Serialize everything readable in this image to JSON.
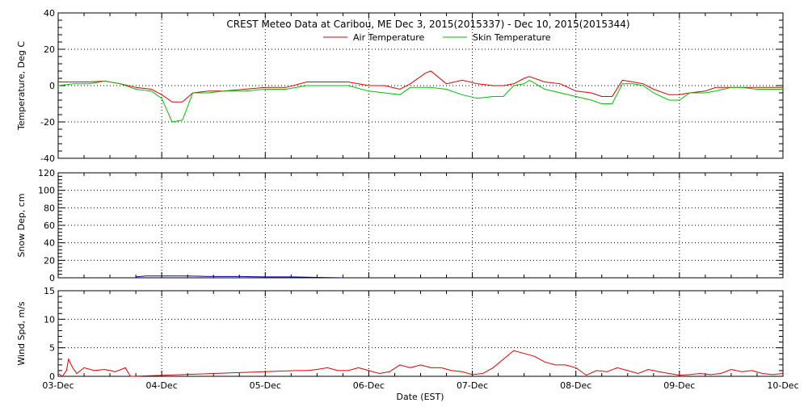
{
  "chart_data": [
    {
      "type": "line",
      "title": "CREST Meteo Data at Caribou, ME   Dec  3, 2015(2015337) - Dec 10, 2015(2015344)",
      "ylabel": "Temperature, Deg C",
      "ylim": [
        -40,
        40
      ],
      "yticks": [
        -40,
        -20,
        0,
        20,
        40
      ],
      "xlim": [
        0,
        7
      ],
      "grid": true,
      "legend": "top-center",
      "series": [
        {
          "name": "Air Temperature",
          "color": "#e00000",
          "x": [
            0,
            0.15,
            0.3,
            0.45,
            0.6,
            0.75,
            0.9,
            1.0,
            1.1,
            1.2,
            1.3,
            1.45,
            1.6,
            1.8,
            2.0,
            2.2,
            2.4,
            2.6,
            2.8,
            3.0,
            3.15,
            3.3,
            3.4,
            3.55,
            3.6,
            3.75,
            3.9,
            4.05,
            4.2,
            4.3,
            4.4,
            4.5,
            4.55,
            4.7,
            4.85,
            5.0,
            5.15,
            5.25,
            5.35,
            5.45,
            5.55,
            5.65,
            5.75,
            5.9,
            6.0,
            6.1,
            6.25,
            6.35,
            6.5,
            6.6,
            6.75,
            6.9,
            7.0
          ],
          "y": [
            2,
            2,
            2,
            2.5,
            1,
            -1,
            -2,
            -5,
            -9,
            -9,
            -4,
            -3,
            -3,
            -2,
            -1,
            -1,
            2,
            2,
            2,
            0,
            0,
            -2,
            1,
            7,
            8,
            1,
            3,
            1,
            0,
            0,
            1,
            4,
            5,
            2,
            1,
            -3,
            -4,
            -6,
            -6,
            3,
            2,
            1,
            -2,
            -5,
            -5,
            -4,
            -3,
            -1,
            -1,
            -1,
            -1,
            -1,
            -1
          ]
        },
        {
          "name": "Skin Temperature",
          "color": "#00c000",
          "x": [
            0,
            0.15,
            0.3,
            0.45,
            0.6,
            0.75,
            0.9,
            1.0,
            1.1,
            1.2,
            1.3,
            1.45,
            1.6,
            1.8,
            2.0,
            2.2,
            2.4,
            2.6,
            2.8,
            3.0,
            3.15,
            3.3,
            3.4,
            3.55,
            3.6,
            3.75,
            3.9,
            4.05,
            4.2,
            4.3,
            4.4,
            4.5,
            4.55,
            4.7,
            4.85,
            5.0,
            5.15,
            5.25,
            5.35,
            5.45,
            5.55,
            5.65,
            5.75,
            5.9,
            6.0,
            6.1,
            6.25,
            6.35,
            6.5,
            6.6,
            6.75,
            6.9,
            7.0
          ],
          "y": [
            0,
            1,
            1,
            2.5,
            1,
            -2,
            -3,
            -7,
            -20,
            -19,
            -4,
            -4,
            -3,
            -3,
            -2,
            -2,
            0,
            0,
            0,
            -3,
            -4,
            -5,
            -1,
            -1,
            -1,
            -2,
            -5,
            -7,
            -6,
            -6,
            0,
            1,
            3,
            -2,
            -4,
            -6,
            -8,
            -10,
            -10,
            1,
            1,
            0,
            -4,
            -8,
            -8,
            -4,
            -4,
            -3,
            -1,
            -1,
            -2,
            -2,
            -2
          ]
        }
      ]
    },
    {
      "type": "line",
      "ylabel": "Snow Dep, cm",
      "ylim": [
        0,
        120
      ],
      "yticks": [
        0,
        20,
        40,
        60,
        80,
        100,
        120
      ],
      "xlim": [
        0,
        7
      ],
      "grid": true,
      "series": [
        {
          "color": "#0000a0",
          "x": [
            0.75,
            0.85,
            1.0,
            1.25,
            1.5,
            1.75,
            2.0,
            2.25,
            2.5,
            2.75
          ],
          "y": [
            1,
            2,
            2,
            2,
            1.5,
            1.5,
            1,
            1,
            0.5,
            0
          ]
        }
      ]
    },
    {
      "type": "line",
      "ylabel": "Wind Spd, m/s",
      "xlabel": "Date (EST)",
      "ylim": [
        0,
        15
      ],
      "yticks": [
        0,
        5,
        10,
        15
      ],
      "xlim": [
        0,
        7
      ],
      "grid": true,
      "categories": [
        "03-Dec",
        "04-Dec",
        "05-Dec",
        "06-Dec",
        "07-Dec",
        "08-Dec",
        "09-Dec",
        "10-Dec"
      ],
      "series": [
        {
          "color": "#e00000",
          "x": [
            0,
            0.04,
            0.08,
            0.1,
            0.14,
            0.18,
            0.25,
            0.35,
            0.45,
            0.55,
            0.65,
            0.68,
            0.7,
            0.72,
            2.3,
            2.4,
            2.5,
            2.6,
            2.7,
            2.8,
            2.9,
            3.0,
            3.1,
            3.2,
            3.3,
            3.4,
            3.5,
            3.6,
            3.7,
            3.8,
            3.9,
            4.0,
            4.1,
            4.2,
            4.3,
            4.4,
            4.5,
            4.6,
            4.7,
            4.8,
            4.9,
            5.0,
            5.1,
            5.2,
            5.3,
            5.4,
            5.5,
            5.6,
            5.7,
            5.8,
            5.9,
            6.0,
            6.1,
            6.2,
            6.3,
            6.4,
            6.5,
            6.6,
            6.7,
            6.8,
            6.9,
            7.0
          ],
          "y": [
            0.5,
            0,
            1,
            3,
            1.5,
            0.5,
            1.5,
            1,
            1.2,
            0.8,
            1.5,
            0.5,
            0,
            0,
            1,
            1,
            1.2,
            1.5,
            1,
            1,
            1.5,
            1,
            0.5,
            0.8,
            2,
            1.5,
            2,
            1.5,
            1.5,
            1,
            0.8,
            0.3,
            0.5,
            1.5,
            3,
            4.5,
            4,
            3.5,
            2.5,
            2,
            2,
            1.5,
            0.2,
            1,
            0.8,
            1.5,
            1,
            0.5,
            1.2,
            0.8,
            0.5,
            0.2,
            0.3,
            0.5,
            0.3,
            0.5,
            1.2,
            0.8,
            1,
            0.5,
            0.3,
            0.5
          ]
        }
      ]
    }
  ]
}
